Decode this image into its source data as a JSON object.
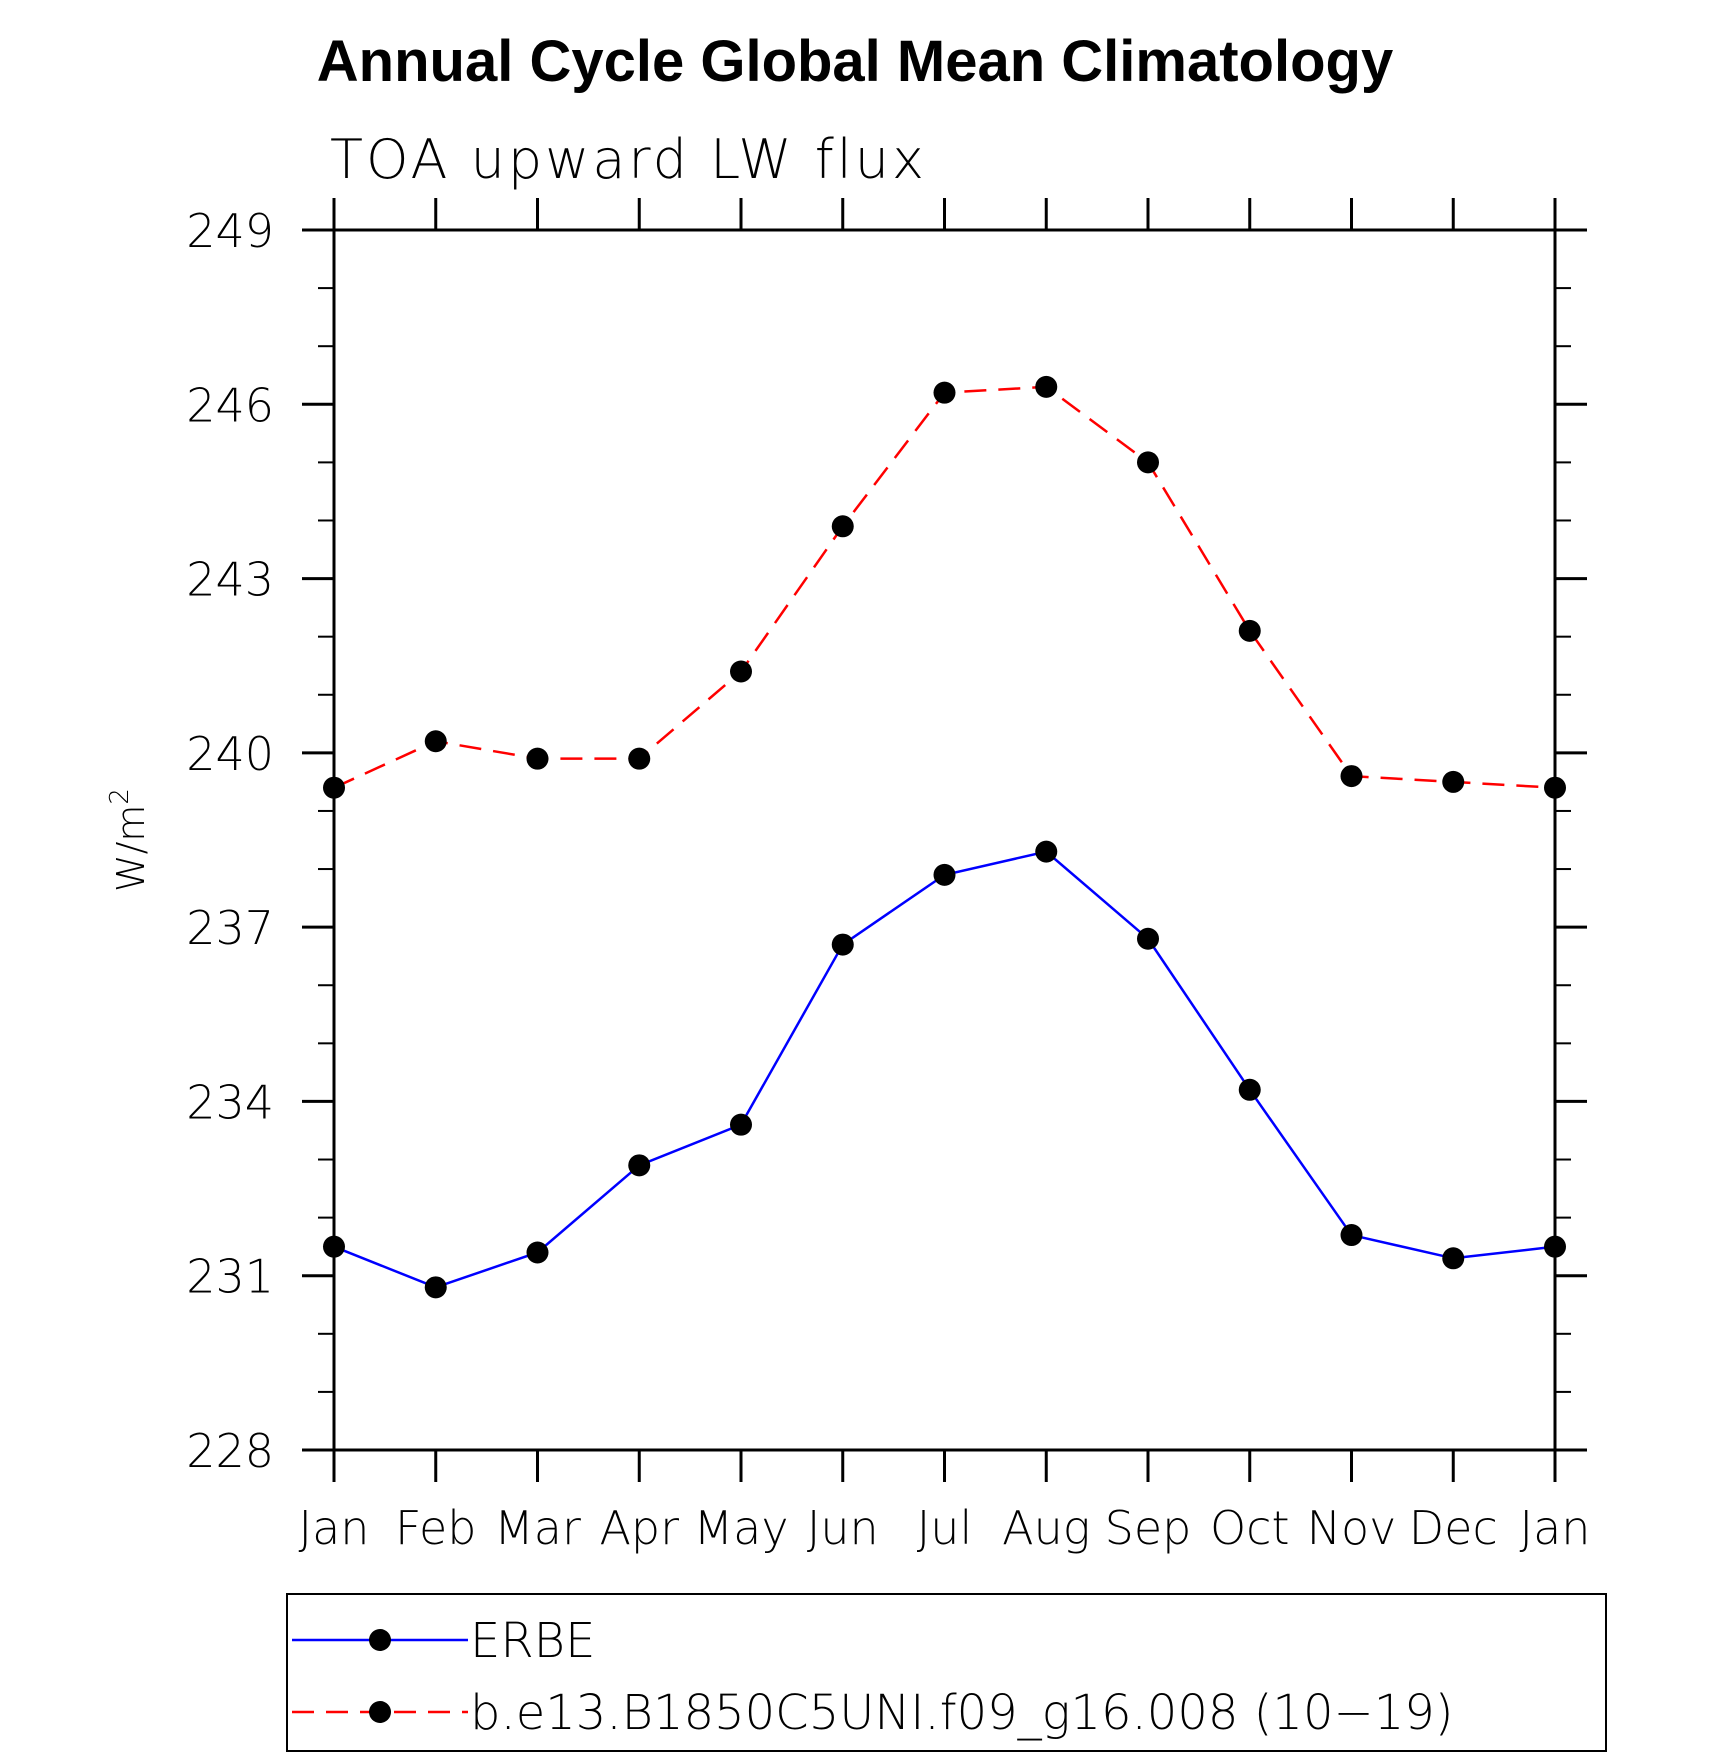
{
  "chart_data": {
    "type": "line",
    "title": "Annual Cycle Global Mean Climatology",
    "subtitle": "TOA upward LW flux",
    "ylabel": "W/m",
    "ylabel_sup": "2",
    "xlabel": "",
    "categories": [
      "Jan",
      "Feb",
      "Mar",
      "Apr",
      "May",
      "Jun",
      "Jul",
      "Aug",
      "Sep",
      "Oct",
      "Nov",
      "Dec",
      "Jan"
    ],
    "ylim": [
      228,
      249
    ],
    "yticks": [
      228,
      231,
      234,
      237,
      240,
      243,
      246,
      249
    ],
    "yticks_text": [
      "228",
      "231",
      "234",
      "237",
      "240",
      "243",
      "246",
      "249"
    ],
    "series": [
      {
        "name": "ERBE",
        "color": "#0000ff",
        "dash": "solid",
        "marker": "circle",
        "values": [
          231.5,
          230.8,
          231.4,
          232.9,
          233.6,
          236.7,
          237.9,
          238.3,
          236.8,
          234.2,
          231.7,
          231.3,
          231.5
        ]
      },
      {
        "name": "b.e13.B1850C5UNI.f09_g16.008 (10−19)",
        "color": "#ff0000",
        "dash": "dashed",
        "marker": "circle",
        "values": [
          239.4,
          240.2,
          239.9,
          239.9,
          241.4,
          243.9,
          246.2,
          246.3,
          245.0,
          242.1,
          239.6,
          239.5,
          239.4
        ]
      }
    ],
    "legend_position": "bottom",
    "grid": false
  }
}
